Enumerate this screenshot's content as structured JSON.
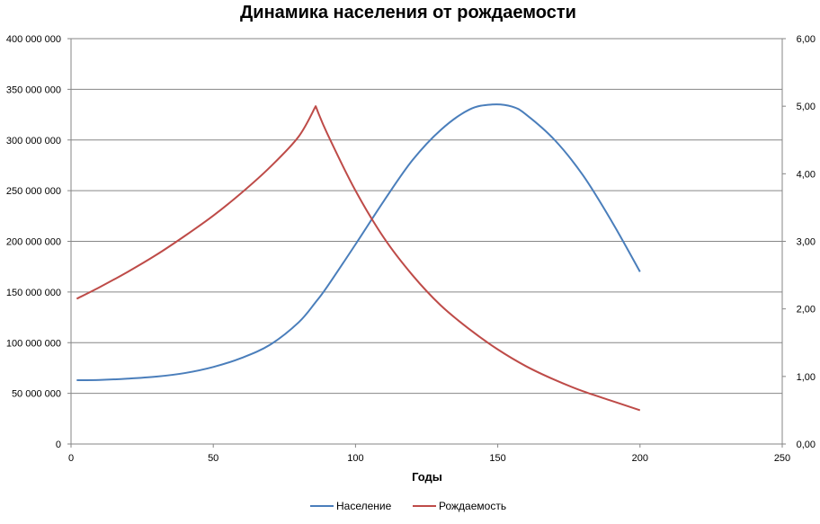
{
  "chart_data": {
    "type": "line",
    "title": "Динамика населения от рождаемости",
    "xlabel": "Годы",
    "xlim": [
      0,
      250
    ],
    "x_ticks": [
      0,
      50,
      100,
      150,
      200,
      250
    ],
    "ylim_left": [
      0,
      400000000
    ],
    "y_left_ticks": [
      0,
      50000000,
      100000000,
      150000000,
      200000000,
      250000000,
      300000000,
      350000000,
      400000000
    ],
    "y_left_tick_labels": [
      "0",
      "50 000 000",
      "100 000 000",
      "150 000 000",
      "200 000 000",
      "250 000 000",
      "300 000 000",
      "350 000 000",
      "400 000 000"
    ],
    "ylim_right": [
      0,
      6
    ],
    "y_right_ticks": [
      0,
      1,
      2,
      3,
      4,
      5,
      6
    ],
    "y_right_tick_labels": [
      "0,00",
      "1,00",
      "2,00",
      "3,00",
      "4,00",
      "5,00",
      "6,00"
    ],
    "grid": true,
    "legend_position": "bottom",
    "series": [
      {
        "name": "Население",
        "axis": "left",
        "color": "#4a7ebb",
        "x": [
          2,
          10,
          20,
          30,
          40,
          50,
          60,
          70,
          80,
          86,
          90,
          100,
          110,
          120,
          130,
          140,
          148,
          155,
          160,
          170,
          180,
          190,
          200
        ],
        "y": [
          63000000,
          63200000,
          64500000,
          66500000,
          70000000,
          76000000,
          85000000,
          98000000,
          120000000,
          140000000,
          155000000,
          197000000,
          240000000,
          280000000,
          310000000,
          330000000,
          335000000,
          333000000,
          325000000,
          300000000,
          265000000,
          220000000,
          170000000
        ]
      },
      {
        "name": "Рождаемость",
        "axis": "right",
        "color": "#be4b48",
        "x": [
          2,
          10,
          20,
          30,
          40,
          50,
          60,
          70,
          80,
          86,
          90,
          100,
          110,
          120,
          130,
          140,
          150,
          160,
          170,
          180,
          190,
          200
        ],
        "y": [
          2.15,
          2.32,
          2.55,
          2.8,
          3.08,
          3.38,
          3.72,
          4.1,
          4.55,
          5.0,
          4.6,
          3.75,
          3.05,
          2.5,
          2.05,
          1.7,
          1.4,
          1.15,
          0.95,
          0.78,
          0.64,
          0.5
        ]
      }
    ]
  }
}
